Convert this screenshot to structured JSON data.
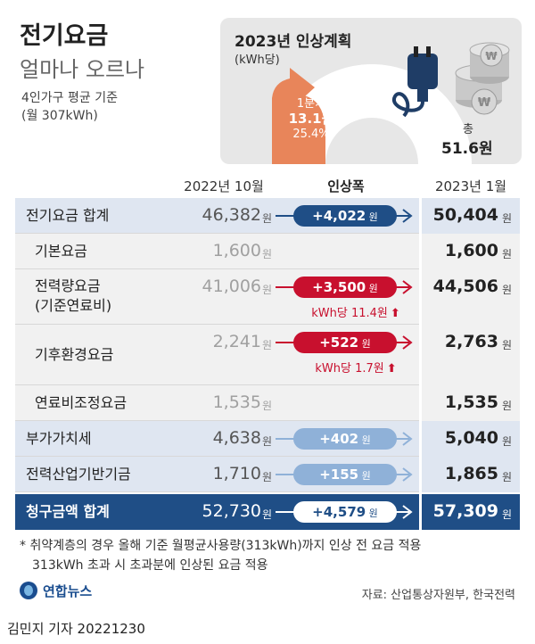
{
  "header": {
    "title": "전기요금",
    "subtitle": "얼마나 오르나",
    "basis_line1": "4인가구 평균 기준",
    "basis_line2": "(월 307kWh)"
  },
  "plan": {
    "title": "2023년 인상계획",
    "unit": "(kWh당)",
    "q1_label": "1분기",
    "q1_value": "13.1원",
    "q1_pct": "25.4%",
    "q1_share": 0.254,
    "total_label": "총",
    "total_value": "51.6원"
  },
  "columns": {
    "before": "2022년 10월",
    "change": "인상폭",
    "after": "2023년 1월"
  },
  "unit_won": "원",
  "rows": [
    {
      "label": "전기요금 합계",
      "before": "46,382",
      "change": "+4,022",
      "after": "50,404",
      "note": "",
      "style": "sum"
    },
    {
      "label": "기본요금",
      "before": "1,600",
      "change": "",
      "after": "1,600",
      "note": "",
      "style": "sub"
    },
    {
      "label": "전력량요금",
      "label2": "(기준연료비)",
      "before": "41,006",
      "change": "+3,500",
      "after": "44,506",
      "note": "kWh당 11.4원",
      "style": "sub-red"
    },
    {
      "label": "기후환경요금",
      "before": "2,241",
      "change": "+522",
      "after": "2,763",
      "note": "kWh당 1.7원",
      "style": "sub-red"
    },
    {
      "label": "연료비조정요금",
      "before": "1,535",
      "change": "",
      "after": "1,535",
      "note": "",
      "style": "sub"
    },
    {
      "label": "부가가치세",
      "before": "4,638",
      "change": "+402",
      "after": "5,040",
      "note": "",
      "style": "light"
    },
    {
      "label": "전력산업기반기금",
      "before": "1,710",
      "change": "+155",
      "after": "1,865",
      "note": "",
      "style": "light"
    },
    {
      "label": "청구금액 합계",
      "before": "52,730",
      "change": "+4,579",
      "after": "57,309",
      "note": "",
      "style": "total"
    }
  ],
  "footnote": {
    "line1": "* 취약계층의 경우 올해 기준 월평균사용량(313kWh)까지 인상 전 요금 적용",
    "line2": "313kWh 초과 시 초과분에 인상된 요금 적용"
  },
  "logo_text": "연합뉴스",
  "source": "자료: 산업통상자원부, 한국전력",
  "byline": "김민지 기자  20221230",
  "colors": {
    "navy": "#1f4e86",
    "red": "#c8102e",
    "light_blue": "#8fb1d8",
    "orange": "#e8855a",
    "row_tint": "#dfe6f1",
    "row_plain": "#f1f1f1"
  },
  "chart_data": {
    "type": "table",
    "columns": [
      "2022년 10월",
      "인상폭",
      "2023년 1월"
    ],
    "categories": [
      "전기요금 합계",
      "기본요금",
      "전력량요금(기준연료비)",
      "기후환경요금",
      "연료비조정요금",
      "부가가치세",
      "전력산업기반기금",
      "청구금액 합계"
    ],
    "series": [
      {
        "name": "2022년 10월",
        "values": [
          46382,
          1600,
          41006,
          2241,
          1535,
          4638,
          1710,
          52730
        ]
      },
      {
        "name": "인상폭",
        "values": [
          4022,
          0,
          3500,
          522,
          0,
          402,
          155,
          4579
        ]
      },
      {
        "name": "2023년 1월",
        "values": [
          50404,
          1600,
          44506,
          2763,
          1535,
          5040,
          1865,
          57309
        ]
      }
    ],
    "plan": {
      "q1": 13.1,
      "total": 51.6,
      "q1_pct": 25.4
    }
  }
}
